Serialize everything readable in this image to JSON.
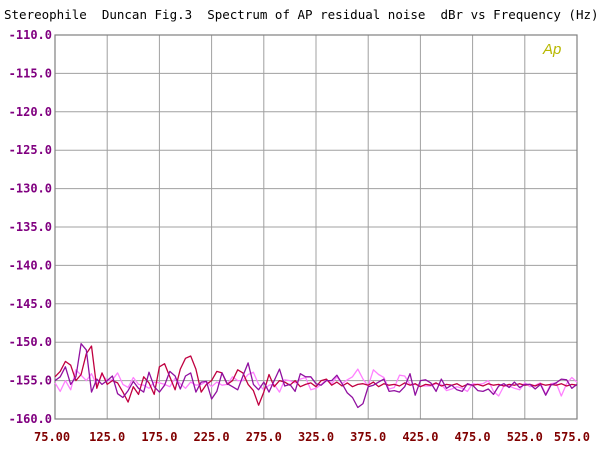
{
  "chart_data": {
    "type": "line",
    "title": "Stereophile  Duncan Fig.3  Spectrum of AP residual noise  dBr vs Frequency (Hz)",
    "logo_text": "Ap",
    "xlim": [
      75,
      575
    ],
    "ylim": [
      -160,
      -110
    ],
    "x_ticks": [
      "75.00",
      "125.0",
      "175.0",
      "225.0",
      "275.0",
      "325.0",
      "375.0",
      "425.0",
      "475.0",
      "525.0",
      "575.0"
    ],
    "y_ticks": [
      "-110.0",
      "-115.0",
      "-120.0",
      "-125.0",
      "-130.0",
      "-135.0",
      "-140.0",
      "-145.0",
      "-150.0",
      "-155.0",
      "-160.0"
    ],
    "grid": true,
    "colors": {
      "background": "#ffffff",
      "grid": "#a0a0a0",
      "frame": "#808080",
      "title_text": "#000000",
      "y_tick_text": "#800080",
      "x_tick_text": "#800000",
      "logo": "#b8b800"
    },
    "series": [
      {
        "color": "#ff80ff",
        "x": [
          75,
          80,
          85,
          90,
          95,
          100,
          105,
          110,
          115,
          120,
          125,
          130,
          135,
          140,
          145,
          150,
          155,
          160,
          165,
          170,
          175,
          180,
          185,
          190,
          195,
          200,
          205,
          210,
          215,
          220,
          225,
          230,
          235,
          240,
          245,
          250,
          255,
          260,
          265,
          270,
          275,
          280,
          285,
          290,
          295,
          300,
          305,
          310,
          315,
          320,
          325,
          330,
          335,
          340,
          345,
          350,
          355,
          360,
          365,
          370,
          375,
          380,
          385,
          390,
          395,
          400,
          405,
          410,
          415,
          420,
          425,
          430,
          435,
          440,
          445,
          450,
          455,
          460,
          465,
          470,
          475,
          480,
          485,
          490,
          495,
          500,
          505,
          510,
          515,
          520,
          525,
          530,
          535,
          540,
          545,
          550,
          555,
          560,
          565,
          570,
          575
        ],
        "values": [
          -155.3,
          -156.4,
          -155.0,
          -156.2,
          -153.6,
          -154.3,
          -155.0,
          -154.1,
          -155.6,
          -154.2,
          -155.0,
          -154.9,
          -154.0,
          -155.5,
          -155.9,
          -154.6,
          -155.5,
          -155.6,
          -156.0,
          -155.2,
          -155.3,
          -155.5,
          -155.8,
          -154.7,
          -155.4,
          -156.0,
          -155.2,
          -155.6,
          -155.5,
          -155.1,
          -155.8,
          -155.2,
          -155.6,
          -155.5,
          -154.5,
          -155.0,
          -155.0,
          -154.2,
          -153.9,
          -155.5,
          -156.2,
          -155.6,
          -155.5,
          -156.5,
          -154.9,
          -155.0,
          -155.3,
          -154.8,
          -154.6,
          -156.2,
          -156.0,
          -155.5,
          -154.9,
          -155.4,
          -154.5,
          -155.4,
          -154.9,
          -154.5,
          -153.5,
          -154.8,
          -155.7,
          -153.6,
          -154.2,
          -154.6,
          -156.1,
          -155.9,
          -154.3,
          -154.4,
          -155.5,
          -155.5,
          -155.7,
          -155.7,
          -155.7,
          -155.4,
          -155.5,
          -156.3,
          -156.1,
          -155.8,
          -156.0,
          -156.4,
          -155.4,
          -155.5,
          -155.4,
          -155.0,
          -156.4,
          -157.0,
          -155.7,
          -155.7,
          -156.0,
          -156.2,
          -155.3,
          -155.8,
          -155.6,
          -155.3,
          -156.8,
          -155.4,
          -155.3,
          -157.0,
          -155.4,
          -154.6,
          -155.2
        ]
      },
      {
        "color": "#c00040",
        "x": [
          75,
          80,
          85,
          90,
          95,
          100,
          105,
          110,
          115,
          120,
          125,
          130,
          135,
          140,
          145,
          150,
          155,
          160,
          165,
          170,
          175,
          180,
          185,
          190,
          195,
          200,
          205,
          210,
          215,
          220,
          225,
          230,
          235,
          240,
          245,
          250,
          255,
          260,
          265,
          270,
          275,
          280,
          285,
          290,
          295,
          300,
          305,
          310,
          315,
          320,
          325,
          330,
          335,
          340,
          345,
          350,
          355,
          360,
          365,
          370,
          375,
          380,
          385,
          390,
          395,
          400,
          405,
          410,
          415,
          420,
          425,
          430,
          435,
          440,
          445,
          450,
          455,
          460,
          465,
          470,
          475,
          480,
          485,
          490,
          495,
          500,
          505,
          510,
          515,
          520,
          525,
          530,
          535,
          540,
          545,
          550,
          555,
          560,
          565,
          570,
          575
        ],
        "values": [
          -154.5,
          -153.8,
          -152.5,
          -153.0,
          -155.0,
          -154.2,
          -151.5,
          -150.5,
          -156.0,
          -154.0,
          -155.5,
          -155.0,
          -155.3,
          -156.5,
          -157.8,
          -155.8,
          -156.8,
          -154.5,
          -155.3,
          -156.8,
          -153.2,
          -152.8,
          -154.5,
          -156.2,
          -153.5,
          -152.1,
          -151.8,
          -153.5,
          -156.5,
          -155.5,
          -155.0,
          -153.8,
          -154.0,
          -155.5,
          -155.0,
          -153.6,
          -154.0,
          -155.5,
          -156.3,
          -158.2,
          -156.5,
          -154.2,
          -155.8,
          -155.0,
          -155.2,
          -155.6,
          -155.0,
          -155.8,
          -155.5,
          -155.3,
          -155.8,
          -155.0,
          -154.8,
          -155.6,
          -155.2,
          -155.7,
          -155.3,
          -155.8,
          -155.5,
          -155.4,
          -155.6,
          -155.2,
          -155.8,
          -155.4,
          -155.6,
          -155.5,
          -155.7,
          -155.3,
          -155.6,
          -155.4,
          -155.8,
          -155.5,
          -155.6,
          -155.3,
          -155.7,
          -155.5,
          -155.6,
          -155.4,
          -155.8,
          -155.5,
          -155.6,
          -155.5,
          -155.7,
          -155.4,
          -155.6,
          -155.5,
          -155.7,
          -155.5,
          -155.6,
          -155.4,
          -155.6,
          -155.5,
          -155.7,
          -155.4,
          -155.6,
          -155.5,
          -155.6,
          -155.4,
          -155.7,
          -155.5,
          -155.6
        ]
      },
      {
        "color": "#9010a0",
        "x": [
          75,
          80,
          85,
          90,
          95,
          100,
          105,
          110,
          115,
          120,
          125,
          130,
          135,
          140,
          145,
          150,
          155,
          160,
          165,
          170,
          175,
          180,
          185,
          190,
          195,
          200,
          205,
          210,
          215,
          220,
          225,
          230,
          235,
          240,
          245,
          250,
          255,
          260,
          265,
          270,
          275,
          280,
          285,
          290,
          295,
          300,
          305,
          310,
          315,
          320,
          325,
          330,
          335,
          340,
          345,
          350,
          355,
          360,
          365,
          370,
          375,
          380,
          385,
          390,
          395,
          400,
          405,
          410,
          415,
          420,
          425,
          430,
          435,
          440,
          445,
          450,
          455,
          460,
          465,
          470,
          475,
          480,
          485,
          490,
          495,
          500,
          505,
          510,
          515,
          520,
          525,
          530,
          535,
          540,
          545,
          550,
          555,
          560,
          565,
          570,
          575
        ],
        "values": [
          -155.0,
          -154.5,
          -153.2,
          -155.5,
          -154.5,
          -150.2,
          -151.0,
          -156.5,
          -154.8,
          -155.5,
          -155.0,
          -154.4,
          -156.7,
          -157.2,
          -156.3,
          -155.1,
          -156.0,
          -156.5,
          -153.9,
          -155.8,
          -156.5,
          -155.6,
          -153.8,
          -154.4,
          -156.1,
          -154.4,
          -154.0,
          -156.5,
          -155.2,
          -155.1,
          -157.4,
          -156.4,
          -154.0,
          -155.4,
          -155.8,
          -156.2,
          -154.4,
          -152.7,
          -155.5,
          -156.2,
          -155.2,
          -156.5,
          -155.0,
          -153.5,
          -155.7,
          -155.5,
          -156.4,
          -154.1,
          -154.5,
          -154.5,
          -155.4,
          -155.6,
          -155.0,
          -155.0,
          -154.3,
          -155.4,
          -156.6,
          -157.2,
          -158.5,
          -158.0,
          -155.8,
          -155.6,
          -155.2,
          -154.8,
          -156.4,
          -156.3,
          -156.5,
          -155.8,
          -154.1,
          -156.9,
          -155.0,
          -154.9,
          -155.3,
          -156.4,
          -154.8,
          -156.0,
          -155.6,
          -156.2,
          -156.4,
          -155.4,
          -155.6,
          -156.3,
          -156.4,
          -156.1,
          -156.8,
          -155.7,
          -155.4,
          -155.9,
          -155.2,
          -155.9,
          -155.5,
          -155.5,
          -156.1,
          -155.5,
          -156.9,
          -155.6,
          -155.3,
          -154.8,
          -154.9,
          -156.0,
          -155.5
        ]
      }
    ]
  }
}
